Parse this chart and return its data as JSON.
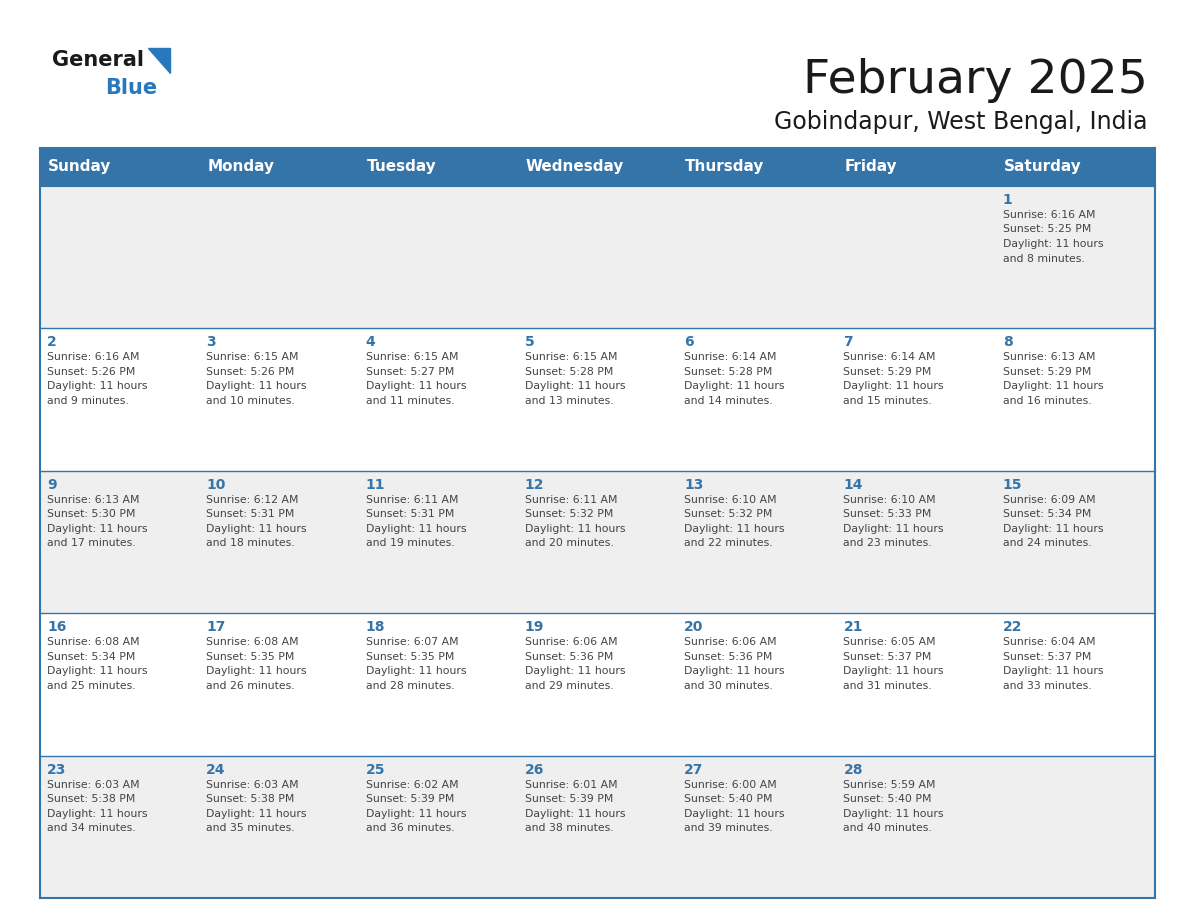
{
  "title": "February 2025",
  "subtitle": "Gobindapur, West Bengal, India",
  "header_bg_color": "#3574A8",
  "header_text_color": "#FFFFFF",
  "day_names": [
    "Sunday",
    "Monday",
    "Tuesday",
    "Wednesday",
    "Thursday",
    "Friday",
    "Saturday"
  ],
  "bg_color": "#FFFFFF",
  "cell_bg_week1": "#EFEFEF",
  "cell_bg_week2": "#FFFFFF",
  "border_color": "#3574A8",
  "day_num_color": "#3574A8",
  "text_color": "#444444",
  "logo_text_color": "#1a1a1a",
  "logo_blue_color": "#2878BE",
  "title_fontsize": 34,
  "subtitle_fontsize": 17,
  "header_fontsize": 11,
  "day_num_fontsize": 10,
  "cell_text_fontsize": 7.8,
  "calendar": [
    [
      null,
      null,
      null,
      null,
      null,
      null,
      {
        "day": 1,
        "sunrise": "6:16 AM",
        "sunset": "5:25 PM",
        "daylight_line1": "Daylight: 11 hours",
        "daylight_line2": "and 8 minutes."
      }
    ],
    [
      {
        "day": 2,
        "sunrise": "6:16 AM",
        "sunset": "5:26 PM",
        "daylight_line1": "Daylight: 11 hours",
        "daylight_line2": "and 9 minutes."
      },
      {
        "day": 3,
        "sunrise": "6:15 AM",
        "sunset": "5:26 PM",
        "daylight_line1": "Daylight: 11 hours",
        "daylight_line2": "and 10 minutes."
      },
      {
        "day": 4,
        "sunrise": "6:15 AM",
        "sunset": "5:27 PM",
        "daylight_line1": "Daylight: 11 hours",
        "daylight_line2": "and 11 minutes."
      },
      {
        "day": 5,
        "sunrise": "6:15 AM",
        "sunset": "5:28 PM",
        "daylight_line1": "Daylight: 11 hours",
        "daylight_line2": "and 13 minutes."
      },
      {
        "day": 6,
        "sunrise": "6:14 AM",
        "sunset": "5:28 PM",
        "daylight_line1": "Daylight: 11 hours",
        "daylight_line2": "and 14 minutes."
      },
      {
        "day": 7,
        "sunrise": "6:14 AM",
        "sunset": "5:29 PM",
        "daylight_line1": "Daylight: 11 hours",
        "daylight_line2": "and 15 minutes."
      },
      {
        "day": 8,
        "sunrise": "6:13 AM",
        "sunset": "5:29 PM",
        "daylight_line1": "Daylight: 11 hours",
        "daylight_line2": "and 16 minutes."
      }
    ],
    [
      {
        "day": 9,
        "sunrise": "6:13 AM",
        "sunset": "5:30 PM",
        "daylight_line1": "Daylight: 11 hours",
        "daylight_line2": "and 17 minutes."
      },
      {
        "day": 10,
        "sunrise": "6:12 AM",
        "sunset": "5:31 PM",
        "daylight_line1": "Daylight: 11 hours",
        "daylight_line2": "and 18 minutes."
      },
      {
        "day": 11,
        "sunrise": "6:11 AM",
        "sunset": "5:31 PM",
        "daylight_line1": "Daylight: 11 hours",
        "daylight_line2": "and 19 minutes."
      },
      {
        "day": 12,
        "sunrise": "6:11 AM",
        "sunset": "5:32 PM",
        "daylight_line1": "Daylight: 11 hours",
        "daylight_line2": "and 20 minutes."
      },
      {
        "day": 13,
        "sunrise": "6:10 AM",
        "sunset": "5:32 PM",
        "daylight_line1": "Daylight: 11 hours",
        "daylight_line2": "and 22 minutes."
      },
      {
        "day": 14,
        "sunrise": "6:10 AM",
        "sunset": "5:33 PM",
        "daylight_line1": "Daylight: 11 hours",
        "daylight_line2": "and 23 minutes."
      },
      {
        "day": 15,
        "sunrise": "6:09 AM",
        "sunset": "5:34 PM",
        "daylight_line1": "Daylight: 11 hours",
        "daylight_line2": "and 24 minutes."
      }
    ],
    [
      {
        "day": 16,
        "sunrise": "6:08 AM",
        "sunset": "5:34 PM",
        "daylight_line1": "Daylight: 11 hours",
        "daylight_line2": "and 25 minutes."
      },
      {
        "day": 17,
        "sunrise": "6:08 AM",
        "sunset": "5:35 PM",
        "daylight_line1": "Daylight: 11 hours",
        "daylight_line2": "and 26 minutes."
      },
      {
        "day": 18,
        "sunrise": "6:07 AM",
        "sunset": "5:35 PM",
        "daylight_line1": "Daylight: 11 hours",
        "daylight_line2": "and 28 minutes."
      },
      {
        "day": 19,
        "sunrise": "6:06 AM",
        "sunset": "5:36 PM",
        "daylight_line1": "Daylight: 11 hours",
        "daylight_line2": "and 29 minutes."
      },
      {
        "day": 20,
        "sunrise": "6:06 AM",
        "sunset": "5:36 PM",
        "daylight_line1": "Daylight: 11 hours",
        "daylight_line2": "and 30 minutes."
      },
      {
        "day": 21,
        "sunrise": "6:05 AM",
        "sunset": "5:37 PM",
        "daylight_line1": "Daylight: 11 hours",
        "daylight_line2": "and 31 minutes."
      },
      {
        "day": 22,
        "sunrise": "6:04 AM",
        "sunset": "5:37 PM",
        "daylight_line1": "Daylight: 11 hours",
        "daylight_line2": "and 33 minutes."
      }
    ],
    [
      {
        "day": 23,
        "sunrise": "6:03 AM",
        "sunset": "5:38 PM",
        "daylight_line1": "Daylight: 11 hours",
        "daylight_line2": "and 34 minutes."
      },
      {
        "day": 24,
        "sunrise": "6:03 AM",
        "sunset": "5:38 PM",
        "daylight_line1": "Daylight: 11 hours",
        "daylight_line2": "and 35 minutes."
      },
      {
        "day": 25,
        "sunrise": "6:02 AM",
        "sunset": "5:39 PM",
        "daylight_line1": "Daylight: 11 hours",
        "daylight_line2": "and 36 minutes."
      },
      {
        "day": 26,
        "sunrise": "6:01 AM",
        "sunset": "5:39 PM",
        "daylight_line1": "Daylight: 11 hours",
        "daylight_line2": "and 38 minutes."
      },
      {
        "day": 27,
        "sunrise": "6:00 AM",
        "sunset": "5:40 PM",
        "daylight_line1": "Daylight: 11 hours",
        "daylight_line2": "and 39 minutes."
      },
      {
        "day": 28,
        "sunrise": "5:59 AM",
        "sunset": "5:40 PM",
        "daylight_line1": "Daylight: 11 hours",
        "daylight_line2": "and 40 minutes."
      },
      null
    ]
  ]
}
